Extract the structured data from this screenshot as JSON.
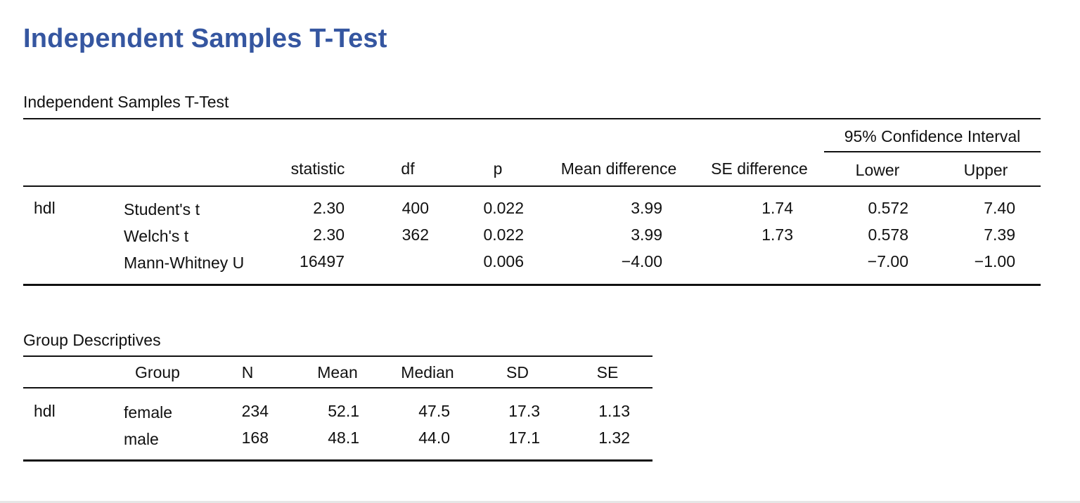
{
  "page": {
    "title": "Independent Samples T-Test"
  },
  "ttest": {
    "caption": "Independent Samples T-Test",
    "ci_header": "95% Confidence Interval",
    "columns": {
      "statistic": "statistic",
      "df": "df",
      "p": "p",
      "mean_difference": "Mean difference",
      "se_difference": "SE difference",
      "lower": "Lower",
      "upper": "Upper"
    },
    "variable": "hdl",
    "rows": [
      {
        "test": "Student's t",
        "statistic": "2.30",
        "df": "400",
        "p": "0.022",
        "mean_difference": "3.99",
        "se_difference": "1.74",
        "lower": "0.572",
        "upper": "7.40"
      },
      {
        "test": "Welch's t",
        "statistic": "2.30",
        "df": "362",
        "p": "0.022",
        "mean_difference": "3.99",
        "se_difference": "1.73",
        "lower": "0.578",
        "upper": "7.39"
      },
      {
        "test": "Mann-Whitney U",
        "statistic": "16497",
        "df": "",
        "p": "0.006",
        "mean_difference": "−4.00",
        "se_difference": "",
        "lower": "−7.00",
        "upper": "−1.00"
      }
    ]
  },
  "descriptives": {
    "caption": "Group Descriptives",
    "columns": {
      "group": "Group",
      "n": "N",
      "mean": "Mean",
      "median": "Median",
      "sd": "SD",
      "se": "SE"
    },
    "variable": "hdl",
    "rows": [
      {
        "group": "female",
        "n": "234",
        "mean": "52.1",
        "median": "47.5",
        "sd": "17.3",
        "se": "1.13"
      },
      {
        "group": "male",
        "n": "168",
        "mean": "48.1",
        "median": "44.0",
        "sd": "17.1",
        "se": "1.32"
      }
    ]
  }
}
